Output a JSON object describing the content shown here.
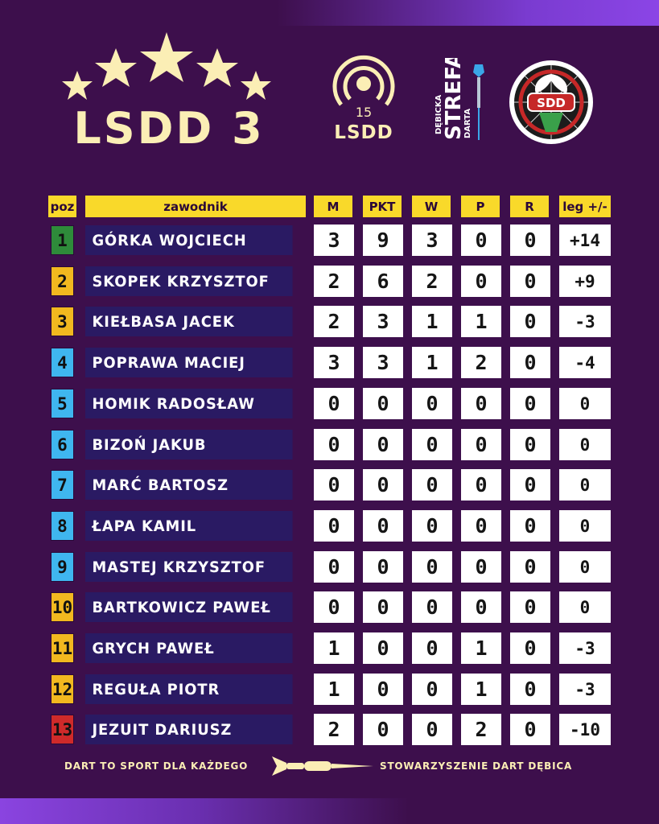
{
  "header": {
    "title": "LSDD 3",
    "logo_lsdd": {
      "number": "15",
      "name": "LSDD"
    },
    "logo_strefa": {
      "line1": "DĘBICKA",
      "line2": "STREFA",
      "line3": "DARTA"
    },
    "logo_sdd": {
      "initials": "SDD",
      "ring_text": "STOWARZYSZENIE DART DĘBICA"
    }
  },
  "table": {
    "columns": {
      "pos": "poz",
      "player": "zawodnik",
      "m": "M",
      "pkt": "PKT",
      "w": "W",
      "p": "P",
      "r": "R",
      "leg": "leg +/-"
    },
    "rows": [
      {
        "pos": "1",
        "color": "#2e8b3a",
        "text_color": "#111111",
        "name": "GÓRKA WOJCIECH",
        "m": "3",
        "pkt": "9",
        "w": "3",
        "p": "0",
        "r": "0",
        "leg": "+14"
      },
      {
        "pos": "2",
        "color": "#f2b81f",
        "text_color": "#111111",
        "name": "SKOPEK KRZYSZTOF",
        "m": "2",
        "pkt": "6",
        "w": "2",
        "p": "0",
        "r": "0",
        "leg": "+9"
      },
      {
        "pos": "3",
        "color": "#f2b81f",
        "text_color": "#111111",
        "name": "KIEŁBASA JACEK",
        "m": "2",
        "pkt": "3",
        "w": "1",
        "p": "1",
        "r": "0",
        "leg": "-3"
      },
      {
        "pos": "4",
        "color": "#3fb6ef",
        "text_color": "#111111",
        "name": "POPRAWA MACIEJ",
        "m": "3",
        "pkt": "3",
        "w": "1",
        "p": "2",
        "r": "0",
        "leg": "-4"
      },
      {
        "pos": "5",
        "color": "#3fb6ef",
        "text_color": "#111111",
        "name": "HOMIK RADOSŁAW",
        "m": "0",
        "pkt": "0",
        "w": "0",
        "p": "0",
        "r": "0",
        "leg": "0"
      },
      {
        "pos": "6",
        "color": "#3fb6ef",
        "text_color": "#111111",
        "name": "BIZOŃ JAKUB",
        "m": "0",
        "pkt": "0",
        "w": "0",
        "p": "0",
        "r": "0",
        "leg": "0"
      },
      {
        "pos": "7",
        "color": "#3fb6ef",
        "text_color": "#111111",
        "name": "MARĆ BARTOSZ",
        "m": "0",
        "pkt": "0",
        "w": "0",
        "p": "0",
        "r": "0",
        "leg": "0"
      },
      {
        "pos": "8",
        "color": "#3fb6ef",
        "text_color": "#111111",
        "name": "ŁAPA KAMIL",
        "m": "0",
        "pkt": "0",
        "w": "0",
        "p": "0",
        "r": "0",
        "leg": "0"
      },
      {
        "pos": "9",
        "color": "#3fb6ef",
        "text_color": "#111111",
        "name": "MASTEJ KRZYSZTOF",
        "m": "0",
        "pkt": "0",
        "w": "0",
        "p": "0",
        "r": "0",
        "leg": "0"
      },
      {
        "pos": "10",
        "color": "#f2b81f",
        "text_color": "#111111",
        "name": "BARTKOWICZ PAWEŁ",
        "m": "0",
        "pkt": "0",
        "w": "0",
        "p": "0",
        "r": "0",
        "leg": "0"
      },
      {
        "pos": "11",
        "color": "#f2b81f",
        "text_color": "#111111",
        "name": "GRYCH PAWEŁ",
        "m": "1",
        "pkt": "0",
        "w": "0",
        "p": "1",
        "r": "0",
        "leg": "-3"
      },
      {
        "pos": "12",
        "color": "#f2b81f",
        "text_color": "#111111",
        "name": "REGUŁA PIOTR",
        "m": "1",
        "pkt": "0",
        "w": "0",
        "p": "1",
        "r": "0",
        "leg": "-3"
      },
      {
        "pos": "13",
        "color": "#cf2a2a",
        "text_color": "#111111",
        "name": "JEZUIT DARIUSZ",
        "m": "2",
        "pkt": "0",
        "w": "0",
        "p": "2",
        "r": "0",
        "leg": "-10"
      }
    ]
  },
  "footer": {
    "left": "DART TO SPORT DLA KAŻDEGO",
    "right": "STOWARZYSZENIE DART DĘBICA"
  },
  "colors": {
    "background": "#3d0f4c",
    "header_yellow": "#f9d92a",
    "name_band": "#2a1a63",
    "cream": "#fbeeb5"
  }
}
